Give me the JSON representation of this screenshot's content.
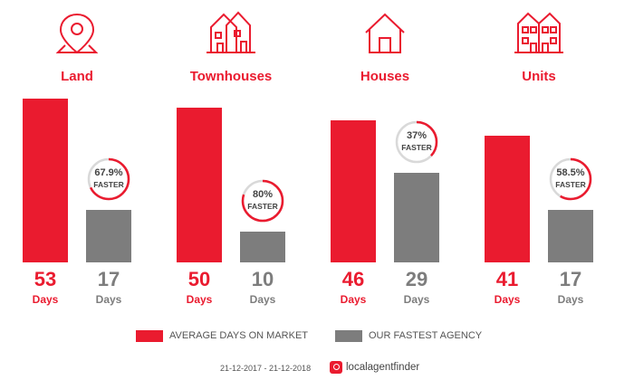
{
  "chart_data": {
    "type": "bar",
    "categories": [
      "Land",
      "Townhouses",
      "Houses",
      "Units"
    ],
    "series": [
      {
        "name": "AVERAGE DAYS ON MARKET",
        "values": [
          53,
          50,
          46,
          41
        ],
        "color": "#ea1b2f"
      },
      {
        "name": "OUR FASTEST AGENCY",
        "values": [
          17,
          10,
          29,
          17
        ],
        "color": "#7d7d7d"
      }
    ],
    "unit_label": "Days",
    "faster": [
      {
        "pct": "67.9%",
        "fraction": 0.679,
        "label": "FASTER"
      },
      {
        "pct": "80%",
        "fraction": 0.8,
        "label": "FASTER"
      },
      {
        "pct": "37%",
        "fraction": 0.37,
        "label": "FASTER"
      },
      {
        "pct": "58.5%",
        "fraction": 0.585,
        "label": "FASTER"
      }
    ],
    "icons": [
      "map-pin-icon",
      "townhouses-icon",
      "house-icon",
      "units-icon"
    ],
    "legend_position": "bottom",
    "grid": false
  },
  "footer": {
    "date_range": "21-12-2017 - 21-12-2018",
    "brand": "localagentfinder"
  }
}
